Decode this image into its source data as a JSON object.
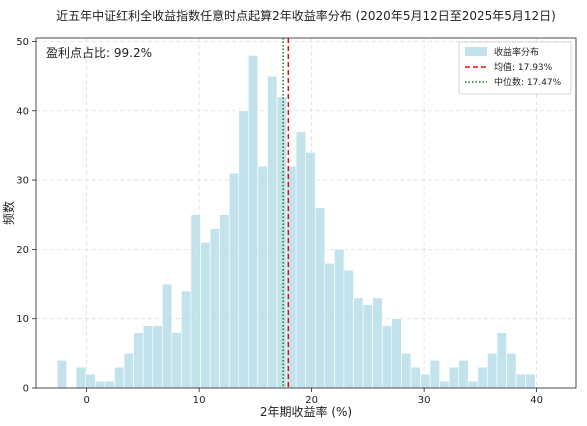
{
  "chart_data": {
    "type": "bar",
    "title": "近五年中证红利全收益指数任意时点起算2年收益率分布 (2020年5月12日至2025年5月12日)",
    "xlabel": "2年期收益率 (%)",
    "ylabel": "频数",
    "xlim": [
      -4.5,
      43.5
    ],
    "ylim": [
      0,
      50.5
    ],
    "xticks": [
      0,
      10,
      20,
      30,
      40
    ],
    "yticks": [
      0,
      10,
      20,
      30,
      40,
      50
    ],
    "grid": true,
    "legend_position": "top-right",
    "annotation": "盈利点占比: 99.2%",
    "bin_width": 0.85,
    "bins": {
      "x": [
        -2.2,
        -1.35,
        -0.5,
        0.35,
        1.2,
        2.05,
        2.9,
        3.75,
        4.6,
        5.45,
        6.3,
        7.15,
        8.0,
        8.85,
        9.7,
        10.55,
        11.4,
        12.25,
        13.1,
        13.95,
        14.8,
        15.65,
        16.5,
        17.35,
        18.2,
        19.05,
        19.9,
        20.75,
        21.6,
        22.45,
        23.3,
        24.15,
        25.0,
        25.85,
        26.7,
        27.55,
        28.4,
        29.25,
        30.1,
        30.95,
        31.8,
        32.65,
        33.5,
        34.35,
        35.2,
        36.05,
        36.9,
        37.75,
        38.6,
        39.45,
        40.3,
        41.15
      ],
      "values": [
        4,
        0,
        3,
        2,
        1,
        1,
        3,
        5,
        8,
        9,
        9,
        15,
        8,
        14,
        25,
        21,
        23,
        25,
        31,
        40,
        48,
        32,
        45,
        42,
        32,
        37,
        34,
        26,
        18,
        20,
        17,
        13,
        12,
        13,
        9,
        10,
        5,
        3,
        2,
        4,
        1,
        3,
        4,
        1,
        3,
        5,
        8,
        5,
        2,
        2,
        0,
        0
      ]
    },
    "series": [
      {
        "name": "收益率分布",
        "color": "#add8e6"
      }
    ],
    "reference_lines": [
      {
        "label": "均值: 17.93%",
        "value": 17.93,
        "color": "#dd1111",
        "style": "dashed"
      },
      {
        "label": "中位数: 17.47%",
        "value": 17.47,
        "color": "#1a7a1a",
        "style": "dotted"
      }
    ]
  }
}
